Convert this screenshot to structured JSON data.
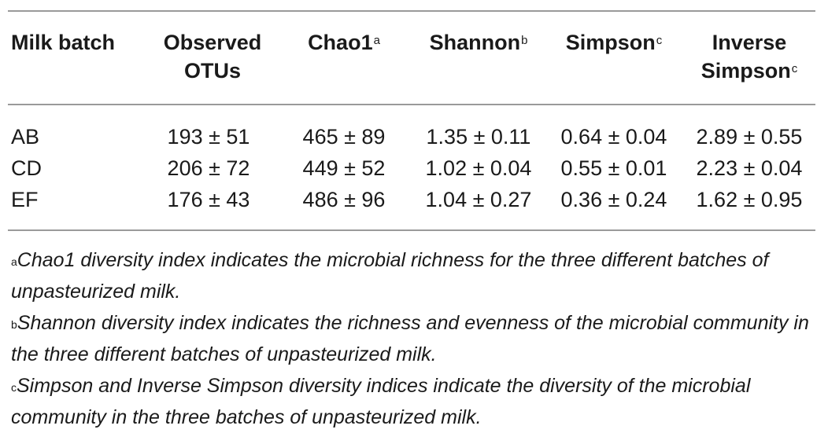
{
  "table": {
    "headers": [
      {
        "text": "Milk batch",
        "sup": ""
      },
      {
        "line1": "Observed",
        "line2": "OTUs"
      },
      {
        "text": "Chao1",
        "sup": "a"
      },
      {
        "text": "Shannon",
        "sup": "b"
      },
      {
        "text": "Simpson",
        "sup": "c"
      },
      {
        "line1": "Inverse",
        "line2": "Simpson",
        "sup": "c"
      }
    ],
    "rows": [
      {
        "batch": "AB",
        "otus": "193 ± 51",
        "chao1": "465 ± 89",
        "shannon": "1.35 ± 0.11",
        "simpson": "0.64 ± 0.04",
        "inv_simpson": "2.89 ± 0.55"
      },
      {
        "batch": "CD",
        "otus": "206 ± 72",
        "chao1": "449 ± 52",
        "shannon": "1.02 ± 0.04",
        "simpson": "0.55 ± 0.01",
        "inv_simpson": "2.23 ± 0.04"
      },
      {
        "batch": "EF",
        "otus": "176 ± 43",
        "chao1": "486 ± 96",
        "shannon": "1.04 ± 0.27",
        "simpson": "0.36 ± 0.24",
        "inv_simpson": "1.62 ± 0.95"
      }
    ]
  },
  "footnotes": [
    {
      "mark": "a",
      "text": "Chao1 diversity index indicates the microbial richness for the three different batches of unpasteurized milk."
    },
    {
      "mark": "b",
      "text": "Shannon diversity index indicates the richness and evenness of the microbial community in the three different batches of unpasteurized milk."
    },
    {
      "mark": "c",
      "text": "Simpson and Inverse Simpson diversity indices indicate the diversity of the microbial community in the three batches of unpasteurized milk."
    }
  ]
}
